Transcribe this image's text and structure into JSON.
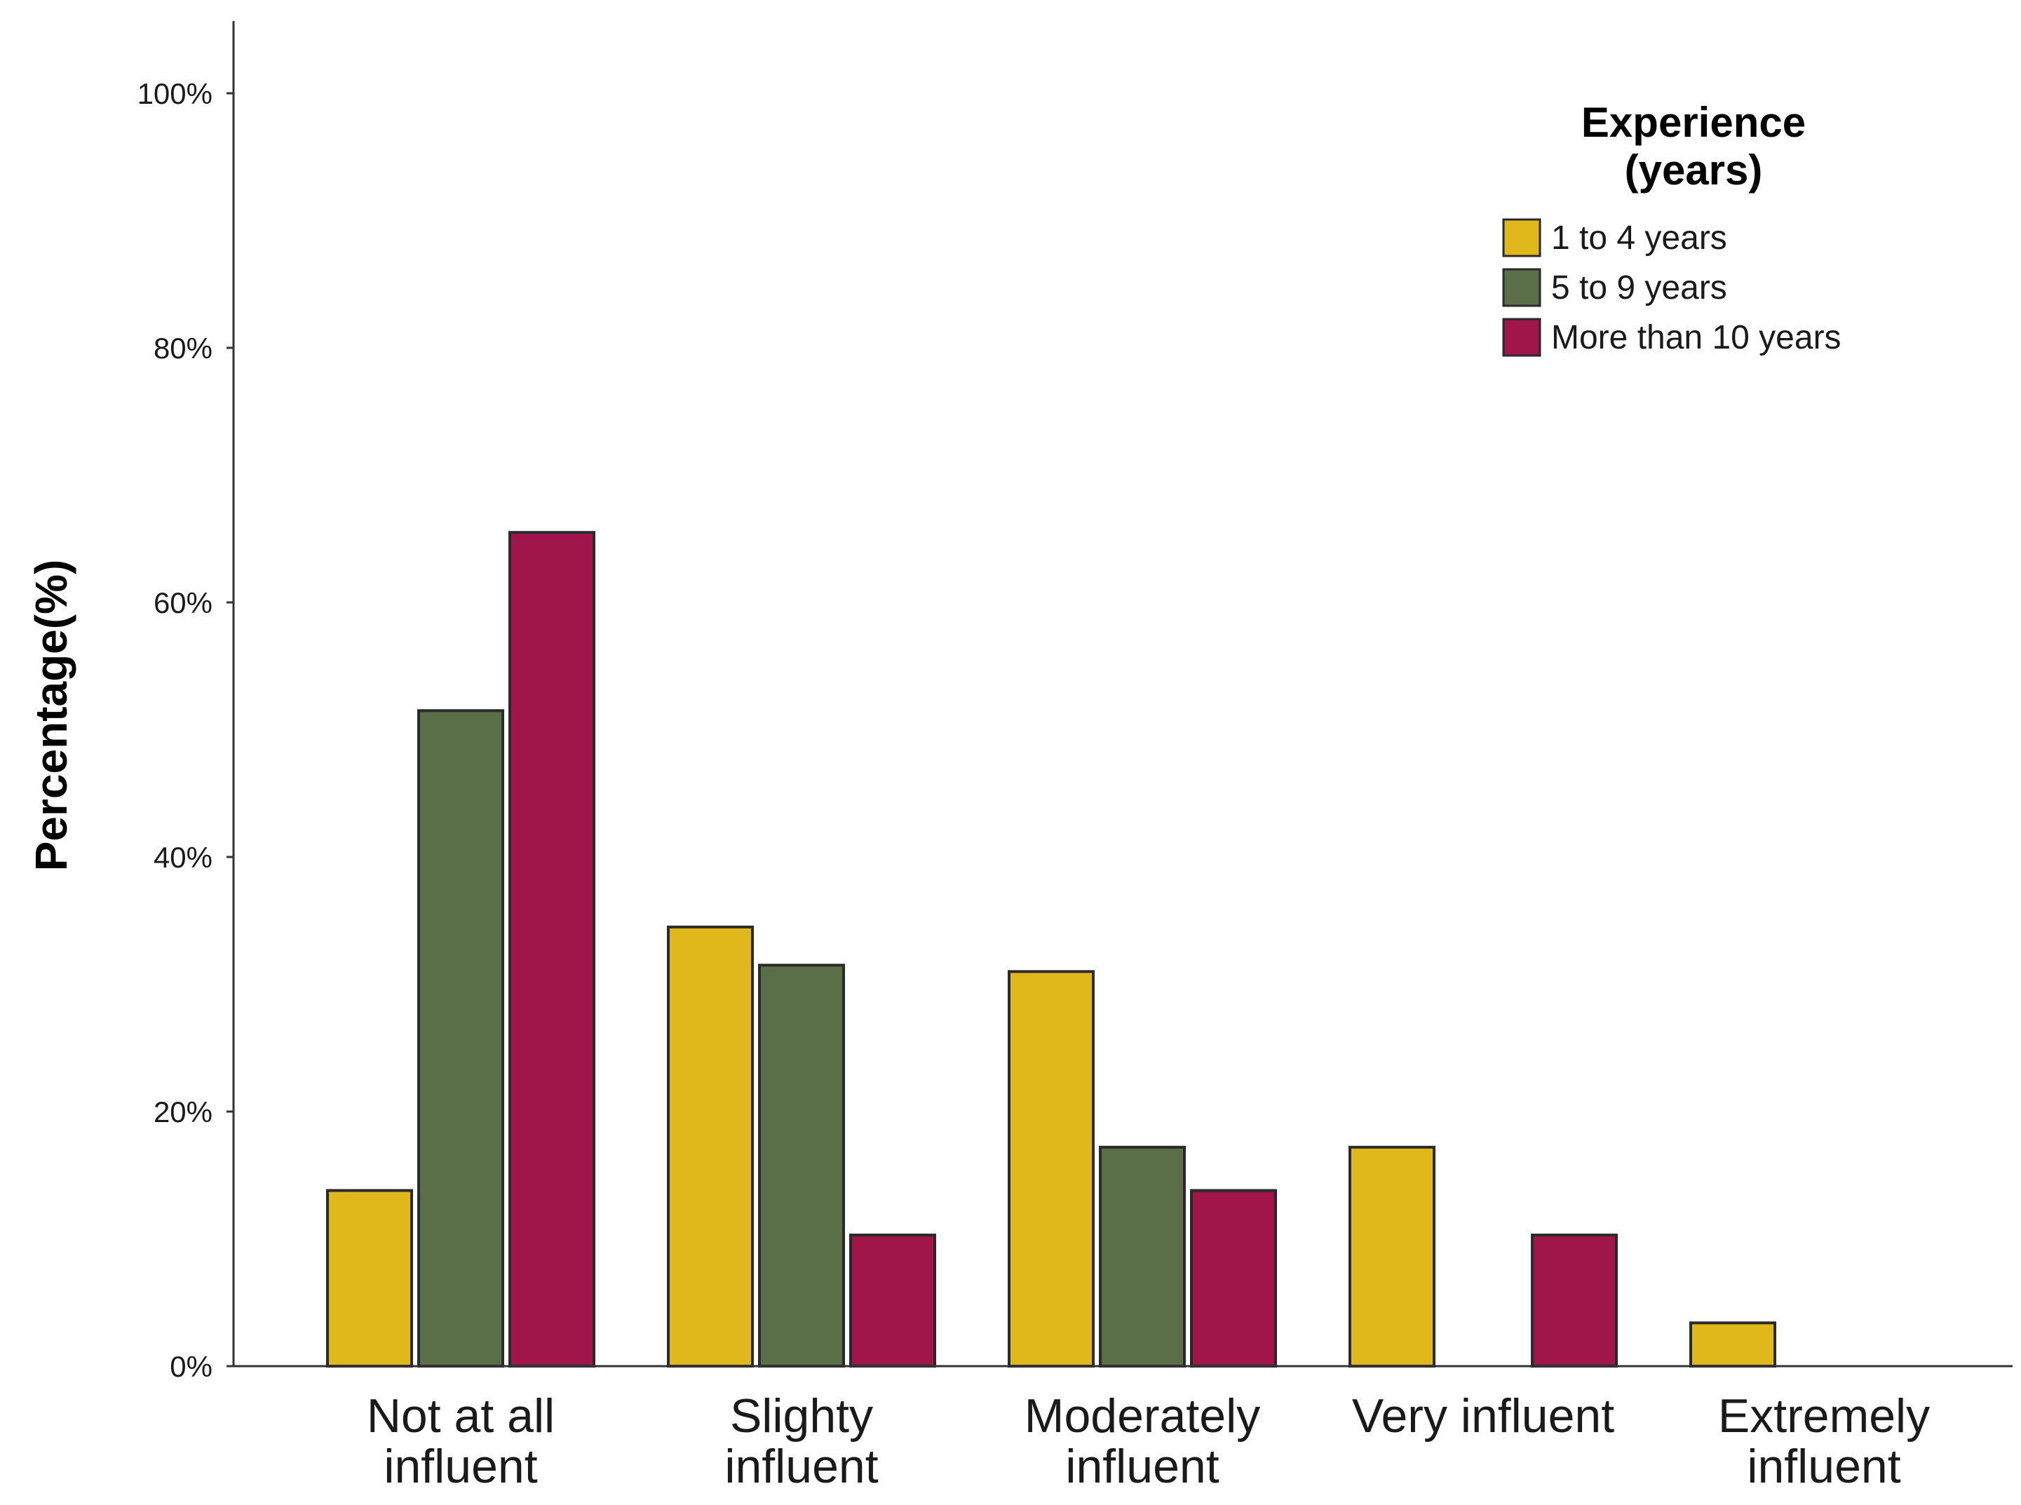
{
  "chart_data": {
    "type": "bar",
    "title": "",
    "xlabel": "",
    "ylabel": "Percentage(%)",
    "ylim": [
      0,
      105
    ],
    "yticks": [
      0,
      20,
      40,
      60,
      80,
      100
    ],
    "ytick_labels": [
      "0%",
      "20%",
      "40%",
      "60%",
      "80%",
      "100%"
    ],
    "grid": false,
    "categories": [
      [
        "Not at all",
        "influent"
      ],
      [
        "Slighty",
        "influent"
      ],
      [
        "Moderately",
        "influent"
      ],
      [
        "Very influent"
      ],
      [
        "Extremely",
        "influent"
      ]
    ],
    "series": [
      {
        "name": "1 to 4 years",
        "color": "#e0b81c",
        "values": [
          13.8,
          34.5,
          31.0,
          17.2,
          3.4
        ]
      },
      {
        "name": "5 to 9 years",
        "color": "#5a6e47",
        "values": [
          51.5,
          31.5,
          17.2,
          0,
          0
        ]
      },
      {
        "name": "More than 10 years",
        "color": "#a0164a",
        "values": [
          65.5,
          10.3,
          13.8,
          10.3,
          0
        ]
      }
    ],
    "legend": {
      "title_lines": [
        "Experience",
        "(years)"
      ],
      "position": "top-right"
    }
  }
}
